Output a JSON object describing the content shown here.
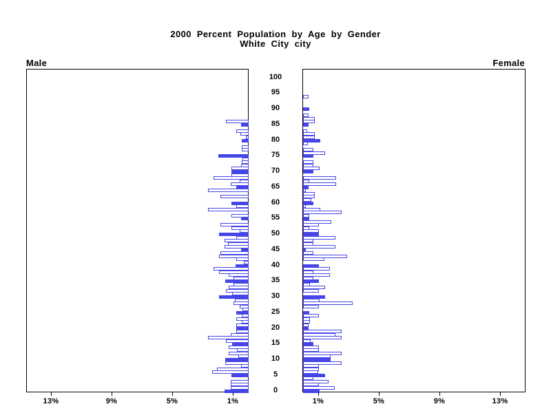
{
  "title": {
    "line1": "2000 Percent Population by Age by Gender",
    "line2": "White City city"
  },
  "panel_labels": {
    "male": "Male",
    "female": "Female"
  },
  "colors": {
    "bar_fill": "#4545e8",
    "bar_outline": "#4545e8",
    "axis": "#000000",
    "background": "#ffffff"
  },
  "chart_data": {
    "type": "bar",
    "subtype": "population-pyramid",
    "title": "2000 Percent Population by Age by Gender",
    "subtitle": "White City city",
    "unit": "percent of population",
    "age_axis": {
      "min": 0,
      "max": 100,
      "label_step": 5,
      "tick_labels": [
        0,
        5,
        10,
        15,
        20,
        25,
        30,
        35,
        40,
        45,
        50,
        55,
        60,
        65,
        70,
        75,
        80,
        85,
        90,
        95,
        100
      ]
    },
    "pct_axis": {
      "min": 0,
      "max": 14.6,
      "tick_values": [
        1,
        5,
        9,
        13
      ],
      "male_tick_labels": [
        "13%",
        "9%",
        "5%",
        "1%"
      ],
      "female_tick_labels": [
        "1%",
        "5%",
        "9%",
        "13%"
      ]
    },
    "highlight_rule": "bars for ages divisible by 5 are solid filled; all other single-year bars are white with blue outline",
    "series": [
      {
        "name": "Male",
        "side": "left",
        "ages": "0-100 by single year",
        "values": [
          1.6,
          1.2,
          1.2,
          1.2,
          0,
          1.15,
          2.4,
          2.1,
          0.5,
          1.55,
          1.55,
          0.7,
          1.3,
          0.75,
          1.3,
          1.1,
          1.5,
          2.7,
          1.2,
          0.8,
          0.8,
          0.8,
          0.45,
          0.8,
          0.45,
          0.8,
          0.4,
          0.6,
          1.0,
          0.9,
          1.95,
          1.1,
          1.5,
          1.3,
          1.0,
          1.55,
          1.0,
          1.3,
          1.95,
          2.3,
          0.85,
          0.3,
          0.8,
          1.95,
          1.85,
          0.5,
          1.6,
          1.35,
          1.6,
          0.8,
          1.95,
          0.6,
          1.15,
          1.85,
          0,
          0.5,
          1.15,
          0,
          2.7,
          0.8,
          1.15,
          0,
          1.85,
          0,
          2.7,
          0.8,
          1.2,
          0.6,
          2.3,
          1.15,
          1.15,
          1.15,
          0.5,
          0.45,
          0.4,
          2.0,
          0,
          0.45,
          0.45,
          0,
          0.45,
          0.2,
          0.55,
          0.8,
          0,
          0.5,
          1.5,
          0,
          0,
          0,
          0,
          0,
          0,
          0,
          0,
          0,
          0,
          0,
          0,
          0,
          0
        ]
      },
      {
        "name": "Female",
        "side": "right",
        "ages": "0-100 by single year",
        "values": [
          1.1,
          2.1,
          1.05,
          1.7,
          0.7,
          1.45,
          1.0,
          1.05,
          1.05,
          2.55,
          1.8,
          1.8,
          2.55,
          1.05,
          1.05,
          0.7,
          0.5,
          2.55,
          2.15,
          2.55,
          0.35,
          0.35,
          0.45,
          0.45,
          1.05,
          0.4,
          0,
          1.05,
          3.25,
          1.1,
          1.45,
          0,
          1.05,
          1.45,
          0.45,
          1.05,
          0.7,
          1.75,
          0.7,
          1.75,
          1.05,
          0,
          1.4,
          2.9,
          0.7,
          0.2,
          2.15,
          0.7,
          0.7,
          2.15,
          1.05,
          1.05,
          0.4,
          1.05,
          1.85,
          0.4,
          0.4,
          2.55,
          1.15,
          0.2,
          0.7,
          0.55,
          0.75,
          0.75,
          0.2,
          0.35,
          2.2,
          0.4,
          2.2,
          0,
          0.7,
          1.1,
          0.7,
          0.7,
          0,
          0.7,
          1.45,
          0.7,
          0,
          0.3,
          1.15,
          0.75,
          0.75,
          0.25,
          0,
          0.35,
          0.75,
          0.75,
          0.35,
          0,
          0.4,
          0,
          0,
          0,
          0.35,
          0,
          0,
          0,
          0,
          0,
          0
        ]
      }
    ]
  }
}
